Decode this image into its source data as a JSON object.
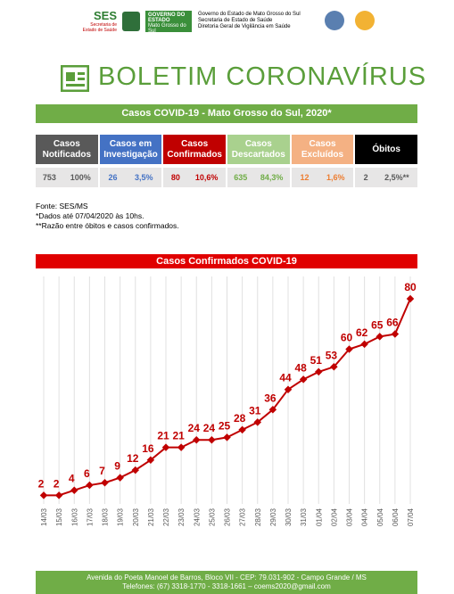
{
  "header": {
    "ses": "SES",
    "ses_sub": "Secretaria de Estado de Saúde",
    "gov_title": "GOVERNO DO ESTADO",
    "gov_sub": "Mato Grosso do Sul",
    "gov_lines": [
      "Governo do Estado de Mato Grosso do Sul",
      "Secretaria de Estado de Saúde",
      "Diretoria Geral de Vigilância em Saúde"
    ]
  },
  "title": "BOLETIM CORONAVÍRUS",
  "subtitle": "Casos COVID-19 - Mato Grosso do Sul, 2020*",
  "table": {
    "headers": [
      "Casos Notificados",
      "Casos em Investigação",
      "Casos Confirmados",
      "Casos Descartados",
      "Casos Excluídos",
      "Óbitos"
    ],
    "rows": [
      [
        "753",
        "100%",
        "26",
        "3,5%",
        "80",
        "10,6%",
        "635",
        "84,3%",
        "12",
        "1,6%",
        "2",
        "2,5%**"
      ]
    ]
  },
  "notes": [
    "Fonte: SES/MS",
    "*Dados até 07/04/2020 às 10hs.",
    "**Razão entre óbitos e casos confirmados."
  ],
  "chart_data": {
    "type": "line",
    "title": "Casos Confirmados COVID-19",
    "color": "#c00000",
    "categories": [
      "14/03",
      "15/03",
      "16/03",
      "17/03",
      "18/03",
      "19/03",
      "20/03",
      "21/03",
      "22/03",
      "23/03",
      "24/03",
      "25/03",
      "26/03",
      "27/03",
      "28/03",
      "29/03",
      "30/03",
      "31/03",
      "01/04",
      "02/04",
      "03/04",
      "04/04",
      "05/04",
      "06/04",
      "07/04"
    ],
    "values": [
      2,
      2,
      4,
      6,
      7,
      9,
      12,
      16,
      21,
      21,
      24,
      24,
      25,
      28,
      31,
      36,
      44,
      48,
      51,
      53,
      60,
      62,
      65,
      66,
      80
    ]
  },
  "footer": [
    "Avenida do Poeta Manoel de Barros, Bloco VII - CEP: 79.031-902 - Campo Grande / MS",
    "Telefones: (67) 3318-1770 - 3318-1661 – coems2020@gmail.com"
  ]
}
